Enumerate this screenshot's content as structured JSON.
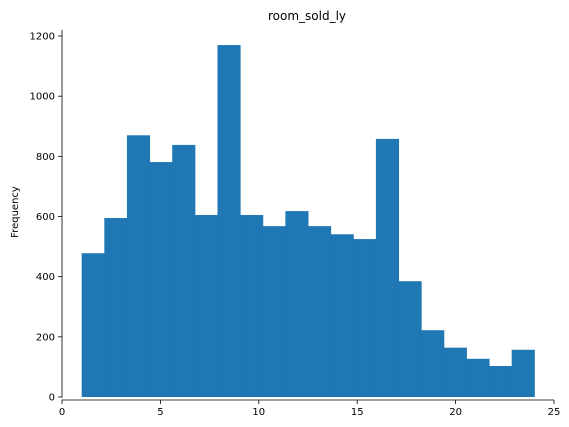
{
  "chart_data": {
    "type": "bar",
    "title": "room_sold_ly",
    "xlabel": "",
    "ylabel": "Frequency",
    "xlim": [
      0,
      25
    ],
    "ylim": [
      0,
      1230
    ],
    "xticks": [
      0,
      5,
      10,
      15,
      20,
      25
    ],
    "yticks": [
      0,
      200,
      400,
      600,
      800,
      1000,
      1200
    ],
    "grid": false,
    "bin_edges": [
      1,
      2.15,
      3.3,
      4.45,
      5.6,
      6.75,
      7.9,
      9.05,
      10.2,
      11.35,
      12.5,
      13.65,
      14.8,
      15.95,
      17.1,
      18.25,
      19.4,
      20.55,
      21.7,
      22.85,
      24
    ],
    "values": [
      478,
      595,
      870,
      781,
      838,
      605,
      1170,
      605,
      568,
      618,
      568,
      541,
      525,
      858,
      385,
      222,
      164,
      127,
      103,
      157
    ],
    "color": "#1f77b4"
  }
}
